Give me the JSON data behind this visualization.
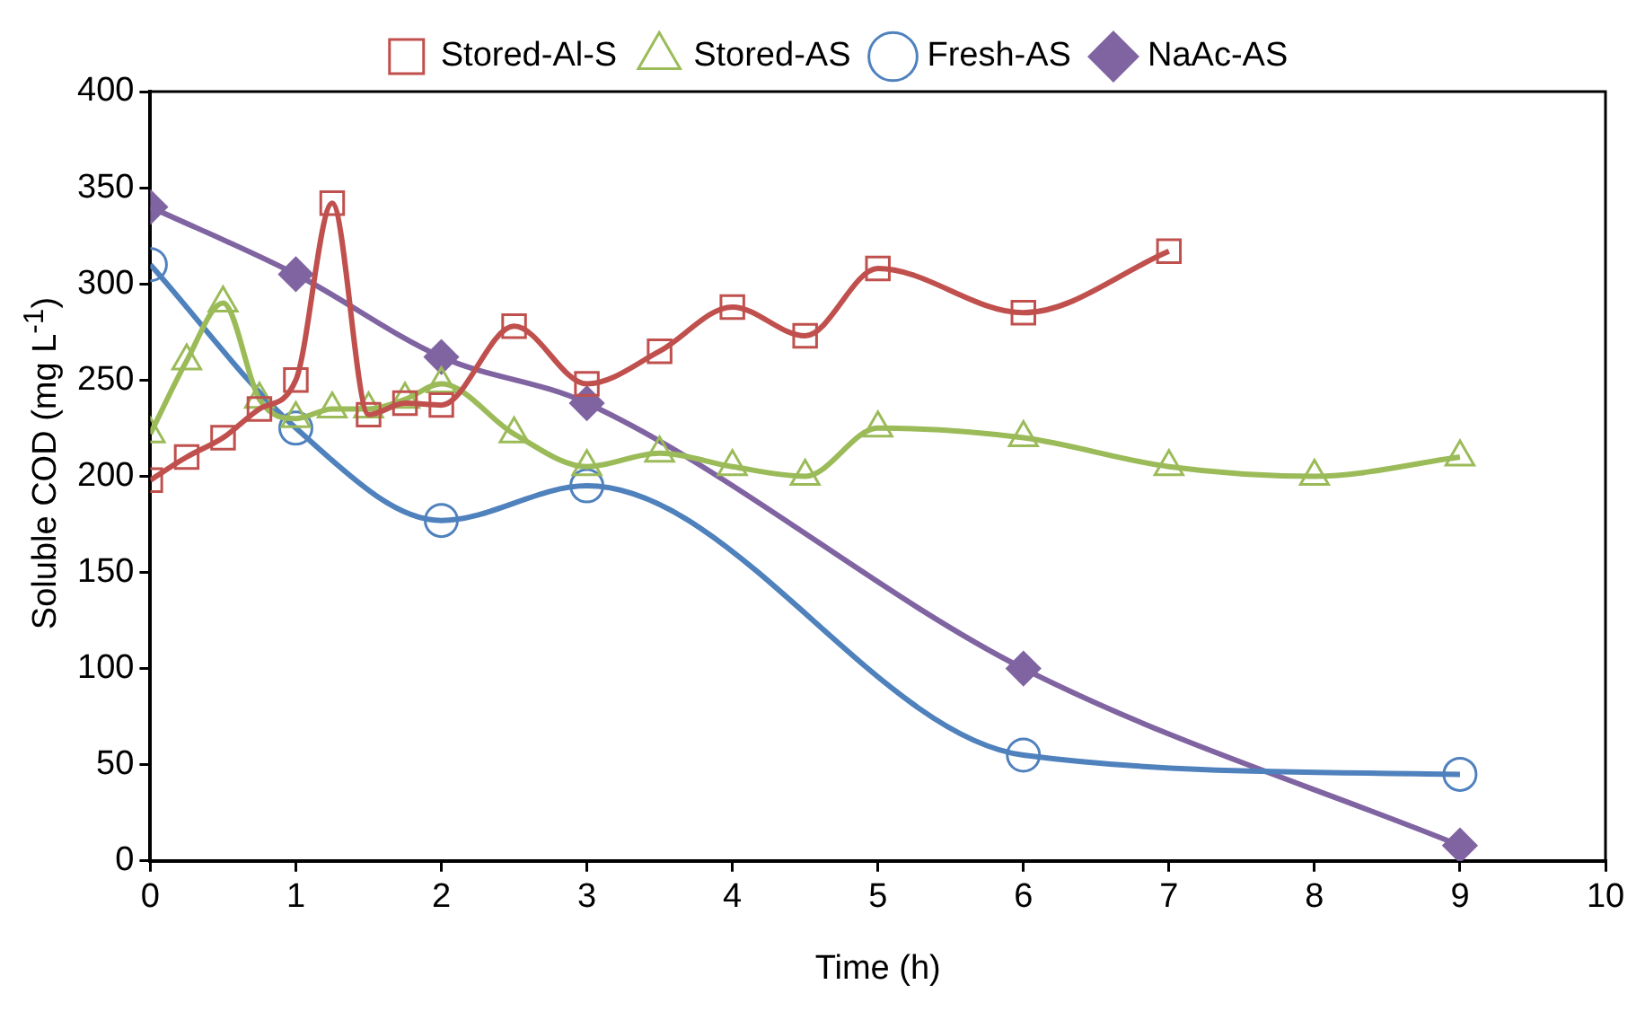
{
  "chart_data": {
    "type": "line",
    "xlabel": "Time (h)",
    "ylabel": "Soluble COD (mg L$^{-1}$)",
    "xlim": [
      0,
      10
    ],
    "xticks": [
      0,
      1,
      2,
      3,
      4,
      5,
      6,
      7,
      8,
      9,
      10
    ],
    "ylim": [
      0,
      400
    ],
    "yticks": [
      0,
      50,
      100,
      150,
      200,
      250,
      300,
      350,
      400
    ],
    "grid": false,
    "legend": "top",
    "series": [
      {
        "name": "Stored-Al-S",
        "color": "#c0504d",
        "marker": "square",
        "x": [
          0,
          0.25,
          0.5,
          0.75,
          1,
          1.25,
          1.5,
          1.75,
          2,
          2.5,
          3,
          3.5,
          4,
          4.5,
          5,
          6,
          7
        ],
        "values": [
          198,
          210,
          220,
          235,
          250,
          342,
          232,
          238,
          237,
          278,
          248,
          265,
          288,
          273,
          308,
          285,
          317
        ]
      },
      {
        "name": "Stored-AS",
        "color": "#9bbb59",
        "marker": "triangle",
        "x": [
          0,
          0.25,
          0.5,
          0.75,
          1,
          1.25,
          1.5,
          1.75,
          2,
          2.5,
          3,
          3.5,
          4,
          4.5,
          5,
          6,
          7,
          8,
          9
        ],
        "values": [
          222,
          260,
          290,
          240,
          230,
          235,
          235,
          240,
          248,
          222,
          205,
          212,
          205,
          200,
          225,
          220,
          205,
          200,
          210
        ]
      },
      {
        "name": "Fresh-AS",
        "color": "#4f81bd",
        "marker": "circle",
        "x": [
          0,
          1,
          2,
          3,
          6,
          9
        ],
        "values": [
          310,
          225,
          177,
          195,
          55,
          45
        ]
      },
      {
        "name": "NaAc-AS",
        "color": "#8064a2",
        "marker": "diamond",
        "x": [
          0,
          1,
          2,
          3,
          6,
          9
        ],
        "values": [
          340,
          305,
          262,
          238,
          100,
          8
        ]
      }
    ]
  }
}
